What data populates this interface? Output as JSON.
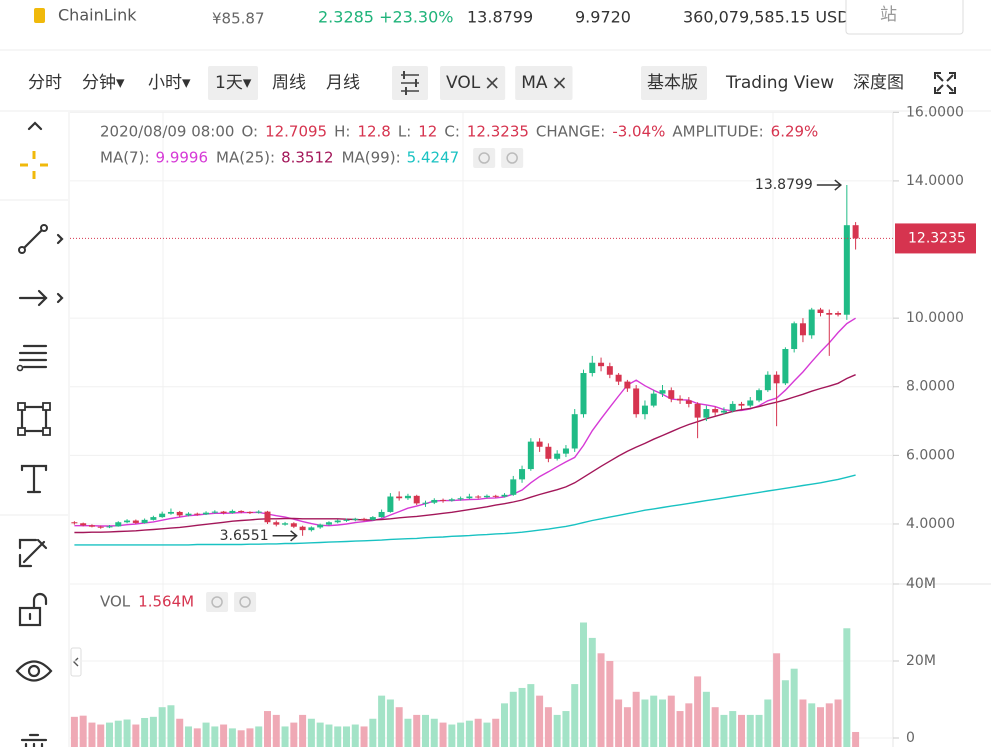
{
  "header": {
    "name": "ChainLink",
    "price": "¥85.87",
    "change": "2.3285 +23.30%",
    "high": "13.8799",
    "low": "9.9720",
    "volume": "360,079,585.15 USD",
    "button": "站"
  },
  "toolbar": {
    "intervals": [
      "分时",
      "分钟▾",
      "小时▾",
      "1天▾",
      "周线",
      "月线"
    ],
    "selected": "1天▾",
    "indicators": [
      "VOL",
      "MA"
    ],
    "views": [
      "基本版",
      "Trading View",
      "深度图"
    ],
    "selected_view": "基本版"
  },
  "info": {
    "date": "2020/08/09 08:00",
    "fields": [
      {
        "label": "O:",
        "value": "12.7095"
      },
      {
        "label": "H:",
        "value": "12.8"
      },
      {
        "label": "L:",
        "value": "12"
      },
      {
        "label": "C:",
        "value": "12.3235"
      },
      {
        "label": "CHANGE:",
        "value": "-3.04%"
      },
      {
        "label": "AMPLITUDE:",
        "value": "6.29%"
      }
    ]
  },
  "chart_data": {
    "type": "candlestick",
    "up_color": "#20bb86",
    "down_color": "#d6344f",
    "ylim": [
      2.25,
      15.98
    ],
    "yticks": [
      {
        "value": 4,
        "label": "4.0000"
      },
      {
        "value": 6,
        "label": "6.0000"
      },
      {
        "value": 8,
        "label": "8.0000"
      },
      {
        "value": 10,
        "label": "10.0000"
      },
      {
        "value": 14,
        "label": "14.0000"
      },
      {
        "value": 16,
        "label": "16.0000"
      }
    ],
    "grid": true,
    "high_label": "13.8799",
    "low_label": "3.6551",
    "candles": [
      [
        4.05,
        4.08,
        3.98,
        4.02
      ],
      [
        4.02,
        4.04,
        3.93,
        3.96
      ],
      [
        3.96,
        3.99,
        3.9,
        3.92
      ],
      [
        3.92,
        3.95,
        3.86,
        3.9
      ],
      [
        3.9,
        3.97,
        3.88,
        3.93
      ],
      [
        3.93,
        4.08,
        3.92,
        4.05
      ],
      [
        4.05,
        4.14,
        4.02,
        4.1
      ],
      [
        4.1,
        4.13,
        4.0,
        4.03
      ],
      [
        4.03,
        4.16,
        4.01,
        4.12
      ],
      [
        4.12,
        4.24,
        4.1,
        4.2
      ],
      [
        4.2,
        4.36,
        4.18,
        4.3
      ],
      [
        4.3,
        4.45,
        4.27,
        4.35
      ],
      [
        4.35,
        4.38,
        4.2,
        4.25
      ],
      [
        4.25,
        4.34,
        4.22,
        4.3
      ],
      [
        4.3,
        4.33,
        4.24,
        4.28
      ],
      [
        4.28,
        4.37,
        4.26,
        4.33
      ],
      [
        4.33,
        4.4,
        4.3,
        4.36
      ],
      [
        4.36,
        4.38,
        4.28,
        4.32
      ],
      [
        4.32,
        4.42,
        4.3,
        4.38
      ],
      [
        4.38,
        4.4,
        4.31,
        4.35
      ],
      [
        4.35,
        4.37,
        4.29,
        4.33
      ],
      [
        4.33,
        4.4,
        4.3,
        4.36
      ],
      [
        4.36,
        4.38,
        4.0,
        4.05
      ],
      [
        4.05,
        4.1,
        3.93,
        3.98
      ],
      [
        3.98,
        4.06,
        3.95,
        4.02
      ],
      [
        4.02,
        4.05,
        3.88,
        3.92
      ],
      [
        3.92,
        3.95,
        3.6551,
        3.82
      ],
      [
        3.82,
        3.93,
        3.78,
        3.9
      ],
      [
        3.9,
        4.01,
        3.86,
        3.98
      ],
      [
        3.98,
        4.08,
        3.95,
        4.05
      ],
      [
        4.05,
        4.13,
        4.02,
        4.1
      ],
      [
        4.1,
        4.16,
        4.06,
        4.12
      ],
      [
        4.12,
        4.18,
        4.08,
        4.15
      ],
      [
        4.15,
        4.18,
        4.08,
        4.12
      ],
      [
        4.12,
        4.23,
        4.1,
        4.2
      ],
      [
        4.2,
        4.42,
        4.18,
        4.35
      ],
      [
        4.35,
        4.9,
        4.33,
        4.8
      ],
      [
        4.8,
        4.95,
        4.68,
        4.75
      ],
      [
        4.75,
        4.88,
        4.7,
        4.82
      ],
      [
        4.82,
        4.85,
        4.55,
        4.6
      ],
      [
        4.6,
        4.68,
        4.5,
        4.62
      ],
      [
        4.62,
        4.75,
        4.58,
        4.7
      ],
      [
        4.7,
        4.74,
        4.62,
        4.68
      ],
      [
        4.68,
        4.76,
        4.65,
        4.72
      ],
      [
        4.72,
        4.8,
        4.68,
        4.75
      ],
      [
        4.75,
        4.88,
        4.72,
        4.8
      ],
      [
        4.8,
        4.84,
        4.74,
        4.78
      ],
      [
        4.78,
        4.86,
        4.75,
        4.82
      ],
      [
        4.82,
        4.85,
        4.76,
        4.8
      ],
      [
        4.8,
        4.9,
        4.77,
        4.85
      ],
      [
        4.85,
        5.4,
        4.82,
        5.3
      ],
      [
        5.3,
        5.7,
        5.2,
        5.6
      ],
      [
        5.6,
        6.5,
        5.55,
        6.4
      ],
      [
        6.4,
        6.5,
        6.1,
        6.25
      ],
      [
        6.25,
        6.35,
        5.8,
        5.9
      ],
      [
        5.9,
        6.15,
        5.85,
        6.05
      ],
      [
        6.05,
        6.3,
        5.95,
        6.2
      ],
      [
        6.2,
        7.35,
        6.1,
        7.2
      ],
      [
        7.2,
        8.5,
        7.1,
        8.4
      ],
      [
        8.4,
        8.9,
        8.3,
        8.7
      ],
      [
        8.7,
        8.85,
        8.45,
        8.6
      ],
      [
        8.6,
        8.7,
        8.25,
        8.35
      ],
      [
        8.35,
        8.4,
        8.05,
        8.15
      ],
      [
        8.15,
        8.2,
        7.85,
        7.95
      ],
      [
        7.95,
        8.05,
        7.1,
        7.2
      ],
      [
        7.2,
        7.6,
        7.05,
        7.45
      ],
      [
        7.45,
        7.9,
        7.4,
        7.8
      ],
      [
        7.8,
        8.05,
        7.7,
        7.9
      ],
      [
        7.9,
        7.98,
        7.55,
        7.65
      ],
      [
        7.65,
        7.75,
        7.5,
        7.6
      ],
      [
        7.6,
        7.7,
        7.4,
        7.5
      ],
      [
        7.5,
        7.55,
        6.5,
        7.1
      ],
      [
        7.1,
        7.45,
        7.0,
        7.35
      ],
      [
        7.35,
        7.42,
        7.15,
        7.25
      ],
      [
        7.25,
        7.4,
        7.2,
        7.3
      ],
      [
        7.3,
        7.58,
        7.25,
        7.5
      ],
      [
        7.5,
        7.56,
        7.35,
        7.45
      ],
      [
        7.45,
        7.7,
        7.4,
        7.6
      ],
      [
        7.6,
        7.95,
        7.55,
        7.9
      ],
      [
        7.9,
        8.45,
        7.85,
        8.35
      ],
      [
        8.35,
        8.45,
        6.85,
        8.1
      ],
      [
        8.1,
        9.15,
        8.05,
        9.1
      ],
      [
        9.1,
        9.9,
        9.0,
        9.85
      ],
      [
        9.85,
        10.0,
        9.3,
        9.5
      ],
      [
        9.5,
        10.3,
        9.4,
        10.25
      ],
      [
        10.25,
        10.3,
        10.05,
        10.15
      ],
      [
        10.15,
        10.25,
        8.9,
        10.1
      ],
      [
        10.15,
        10.2,
        10.05,
        10.1
      ],
      [
        10.1,
        13.8799,
        9.95,
        12.7095
      ],
      [
        12.7095,
        12.8,
        12,
        12.3235
      ]
    ],
    "ma": [
      {
        "name": "MA(7):",
        "color": "#d63ad6",
        "values": [
          3.95,
          3.95,
          3.95,
          3.94,
          3.94,
          3.95,
          3.98,
          4.0,
          4.03,
          4.06,
          4.11,
          4.16,
          4.2,
          4.24,
          4.26,
          4.29,
          4.31,
          4.31,
          4.32,
          4.33,
          4.33,
          4.34,
          4.29,
          4.24,
          4.2,
          4.14,
          4.07,
          4.01,
          3.96,
          3.95,
          3.97,
          4.0,
          4.04,
          4.07,
          4.1,
          4.16,
          4.26,
          4.36,
          4.46,
          4.52,
          4.59,
          4.67,
          4.68,
          4.68,
          4.7,
          4.71,
          4.72,
          4.75,
          4.76,
          4.79,
          4.87,
          4.99,
          5.2,
          5.38,
          5.52,
          5.67,
          5.81,
          5.94,
          6.29,
          6.72,
          7.07,
          7.4,
          7.73,
          8.05,
          8.19,
          8.03,
          7.9,
          7.78,
          7.64,
          7.62,
          7.61,
          7.51,
          7.47,
          7.42,
          7.33,
          7.3,
          7.31,
          7.35,
          7.45,
          7.59,
          7.67,
          7.9,
          8.17,
          8.43,
          8.73,
          9.02,
          9.28,
          9.58,
          9.84,
          9.9996
        ]
      },
      {
        "name": "MA(25):",
        "color": "#a3175a",
        "values": [
          3.75,
          3.75,
          3.76,
          3.76,
          3.77,
          3.78,
          3.79,
          3.8,
          3.82,
          3.84,
          3.86,
          3.88,
          3.9,
          3.93,
          3.96,
          3.99,
          4.02,
          4.05,
          4.08,
          4.1,
          4.12,
          4.14,
          4.15,
          4.15,
          4.16,
          4.16,
          4.15,
          4.15,
          4.15,
          4.15,
          4.15,
          4.14,
          4.13,
          4.12,
          4.12,
          4.13,
          4.15,
          4.18,
          4.2,
          4.22,
          4.25,
          4.28,
          4.31,
          4.34,
          4.38,
          4.42,
          4.46,
          4.5,
          4.55,
          4.59,
          4.64,
          4.7,
          4.78,
          4.86,
          4.93,
          5.0,
          5.08,
          5.2,
          5.36,
          5.52,
          5.68,
          5.83,
          5.98,
          6.12,
          6.24,
          6.35,
          6.47,
          6.58,
          6.69,
          6.8,
          6.9,
          6.98,
          7.07,
          7.14,
          7.21,
          7.28,
          7.33,
          7.37,
          7.42,
          7.49,
          7.55,
          7.62,
          7.7,
          7.78,
          7.87,
          7.95,
          8.02,
          8.1,
          8.24,
          8.3512
        ]
      },
      {
        "name": "MA(99):",
        "color": "#19c2c2",
        "values": [
          3.39,
          3.39,
          3.39,
          3.39,
          3.39,
          3.39,
          3.39,
          3.39,
          3.39,
          3.39,
          3.39,
          3.39,
          3.39,
          3.39,
          3.4,
          3.4,
          3.4,
          3.4,
          3.4,
          3.4,
          3.41,
          3.41,
          3.42,
          3.42,
          3.43,
          3.43,
          3.44,
          3.45,
          3.46,
          3.47,
          3.48,
          3.49,
          3.5,
          3.51,
          3.52,
          3.53,
          3.55,
          3.56,
          3.57,
          3.58,
          3.6,
          3.61,
          3.62,
          3.64,
          3.65,
          3.66,
          3.68,
          3.69,
          3.71,
          3.72,
          3.74,
          3.76,
          3.79,
          3.82,
          3.85,
          3.89,
          3.93,
          3.98,
          4.04,
          4.1,
          4.15,
          4.2,
          4.25,
          4.3,
          4.35,
          4.4,
          4.44,
          4.48,
          4.52,
          4.56,
          4.6,
          4.64,
          4.68,
          4.72,
          4.76,
          4.8,
          4.84,
          4.88,
          4.92,
          4.96,
          5.0,
          5.04,
          5.08,
          5.12,
          5.16,
          5.2,
          5.25,
          5.3,
          5.36,
          5.4247
        ]
      }
    ],
    "volume": {
      "name": "VOL",
      "value_label": "1.564M",
      "up_color": "#a3e3c7",
      "down_color": "#efa9b5",
      "ylim": [
        0,
        40
      ],
      "yticks": [
        0,
        {
          "value": 20,
          "label": "20M"
        },
        {
          "value": 40,
          "label": "40M"
        }
      ],
      "values": [
        5.5,
        5.8,
        4,
        3.5,
        4,
        4.5,
        4.8,
        3.5,
        5.2,
        5.5,
        8,
        8.5,
        5,
        3,
        2.5,
        4,
        3,
        3.5,
        2.5,
        2,
        2.5,
        3,
        7,
        6,
        3,
        4,
        6,
        5,
        4,
        3.5,
        3,
        3,
        3.5,
        3,
        5,
        11,
        10,
        8,
        5,
        6,
        6,
        5,
        4,
        3.5,
        4,
        4.5,
        5,
        4,
        5,
        9,
        12,
        13,
        14,
        11,
        8,
        6,
        7,
        14,
        30,
        26,
        22,
        20,
        10,
        8,
        12,
        10,
        11,
        10,
        11,
        7,
        9,
        16,
        12,
        8,
        6,
        7,
        6,
        6,
        6,
        10,
        22,
        15,
        18,
        10,
        9,
        8,
        9,
        10,
        28.5,
        1.564
      ]
    }
  }
}
